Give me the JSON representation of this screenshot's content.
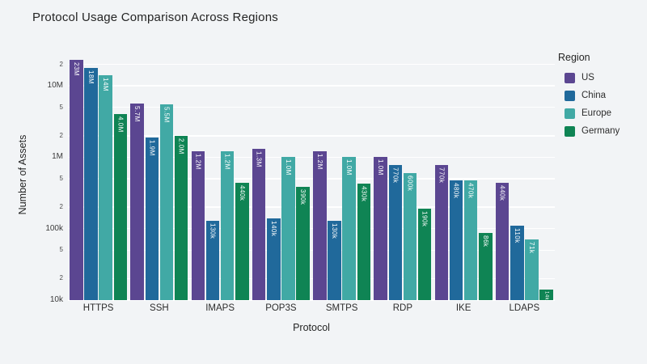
{
  "title": "Protocol Usage Comparison Across Regions",
  "chart_data": {
    "type": "bar",
    "title": "Protocol Usage Comparison Across Regions",
    "xlabel": "Protocol",
    "ylabel": "Number of Assets",
    "legend_title": "Region",
    "legend_position": "top-right",
    "yscale": "log",
    "ylim": [
      10000,
      31600000
    ],
    "grid": true,
    "background_color": "#f2f4f6",
    "gridline_color": "#ffffff",
    "categories": [
      "HTTPS",
      "SSH",
      "IMAPS",
      "POP3S",
      "SMTPS",
      "RDP",
      "IKE",
      "LDAPS"
    ],
    "series": [
      {
        "name": "US",
        "color": "#5b4691",
        "values": [
          23000000,
          5700000,
          1200000,
          1300000,
          1200000,
          1000000,
          770000,
          440000
        ],
        "labels": [
          "23M",
          "5.7M",
          "1.2M",
          "1.3M",
          "1.2M",
          "1.0M",
          "770k",
          "440k"
        ]
      },
      {
        "name": "China",
        "color": "#20699b",
        "values": [
          18000000,
          1900000,
          130000,
          140000,
          130000,
          770000,
          480000,
          110000
        ],
        "labels": [
          "18M",
          "1.9M",
          "130k",
          "140k",
          "130k",
          "770k",
          "480k",
          "110k"
        ]
      },
      {
        "name": "Europe",
        "color": "#41a9a5",
        "values": [
          14000000,
          5500000,
          1200000,
          1000000,
          1000000,
          600000,
          470000,
          71000
        ],
        "labels": [
          "14M",
          "5.5M",
          "1.2M",
          "1.0M",
          "1.0M",
          "600k",
          "470k",
          "71k"
        ]
      },
      {
        "name": "Germany",
        "color": "#0f8454",
        "values": [
          4000000,
          2000000,
          440000,
          390000,
          430000,
          190000,
          86000,
          14000
        ],
        "labels": [
          "4.0M",
          "2.0M",
          "440k",
          "390k",
          "430k",
          "190k",
          "86k",
          "14k"
        ]
      }
    ],
    "y_major_ticks": [
      {
        "value": 10000,
        "label": "10k"
      },
      {
        "value": 100000,
        "label": "100k"
      },
      {
        "value": 1000000,
        "label": "1M"
      },
      {
        "value": 10000000,
        "label": "10M"
      }
    ],
    "y_minor_ticks": [
      {
        "value": 20000,
        "label": "2"
      },
      {
        "value": 50000,
        "label": "5"
      },
      {
        "value": 200000,
        "label": "2"
      },
      {
        "value": 500000,
        "label": "5"
      },
      {
        "value": 2000000,
        "label": "2"
      },
      {
        "value": 5000000,
        "label": "5"
      },
      {
        "value": 20000000,
        "label": "2"
      }
    ]
  }
}
